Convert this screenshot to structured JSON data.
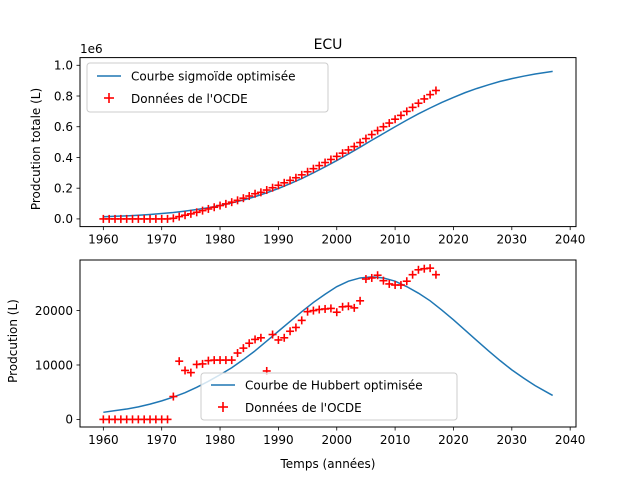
{
  "chart_data": [
    {
      "type": "line",
      "title": "ECU",
      "ylabel": "Prodcution totale (L)",
      "xlabel": "",
      "offset_text": "1e6",
      "xlim": [
        1956,
        2041
      ],
      "ylim": [
        -0.05,
        1.05
      ],
      "xticks": [
        1960,
        1970,
        1980,
        1990,
        2000,
        2010,
        2020,
        2030,
        2040
      ],
      "yticks": [
        0.0,
        0.2,
        0.4,
        0.6,
        0.8,
        1.0
      ],
      "ytick_labels": [
        "0.0",
        "0.2",
        "0.4",
        "0.6",
        "0.8",
        "1.0"
      ],
      "legend_position": "upper left",
      "series": [
        {
          "name": "Courbe sigmoïde optimisée",
          "kind": "line",
          "color": "#1f77b4",
          "x": [
            1960,
            1962,
            1964,
            1966,
            1968,
            1970,
            1972,
            1974,
            1976,
            1978,
            1980,
            1982,
            1984,
            1986,
            1988,
            1990,
            1992,
            1994,
            1996,
            1998,
            2000,
            2002,
            2004,
            2006,
            2008,
            2010,
            2012,
            2014,
            2016,
            2018,
            2020,
            2022,
            2024,
            2026,
            2028,
            2030,
            2032,
            2034,
            2036,
            2037
          ],
          "y": [
            0.014,
            0.017,
            0.02,
            0.024,
            0.029,
            0.035,
            0.042,
            0.051,
            0.061,
            0.073,
            0.087,
            0.104,
            0.123,
            0.145,
            0.17,
            0.198,
            0.229,
            0.263,
            0.3,
            0.339,
            0.38,
            0.423,
            0.467,
            0.512,
            0.556,
            0.6,
            0.643,
            0.684,
            0.722,
            0.758,
            0.791,
            0.822,
            0.849,
            0.873,
            0.895,
            0.913,
            0.929,
            0.943,
            0.955,
            0.96
          ]
        },
        {
          "name": "Données de l'OCDE",
          "kind": "scatter",
          "marker": "+",
          "color": "#ff0000",
          "x": [
            1960,
            1961,
            1962,
            1963,
            1964,
            1965,
            1966,
            1967,
            1968,
            1969,
            1970,
            1971,
            1972,
            1973,
            1974,
            1975,
            1976,
            1977,
            1978,
            1979,
            1980,
            1981,
            1982,
            1983,
            1984,
            1985,
            1986,
            1987,
            1988,
            1989,
            1990,
            1991,
            1992,
            1993,
            1994,
            1995,
            1996,
            1997,
            1998,
            1999,
            2000,
            2001,
            2002,
            2003,
            2004,
            2005,
            2006,
            2007,
            2008,
            2009,
            2010,
            2011,
            2012,
            2013,
            2014,
            2015,
            2016,
            2017
          ],
          "y": [
            0.0,
            0.0,
            0.0,
            0.0,
            0.0,
            0.0,
            0.0,
            0.0,
            0.0,
            0.0,
            0.0,
            0.0,
            0.004,
            0.015,
            0.024,
            0.033,
            0.043,
            0.054,
            0.065,
            0.076,
            0.087,
            0.098,
            0.109,
            0.121,
            0.135,
            0.149,
            0.164,
            0.173,
            0.188,
            0.203,
            0.219,
            0.235,
            0.251,
            0.268,
            0.287,
            0.307,
            0.327,
            0.347,
            0.367,
            0.387,
            0.407,
            0.428,
            0.449,
            0.471,
            0.497,
            0.523,
            0.549,
            0.575,
            0.6,
            0.624,
            0.649,
            0.674,
            0.7,
            0.726,
            0.753,
            0.781,
            0.809,
            0.836
          ]
        }
      ]
    },
    {
      "type": "line",
      "title": "",
      "ylabel": "Prodcution (L)",
      "xlabel": "Temps (années)",
      "xlim": [
        1956,
        2041
      ],
      "ylim": [
        -1400,
        29300
      ],
      "xticks": [
        1960,
        1970,
        1980,
        1990,
        2000,
        2010,
        2020,
        2030,
        2040
      ],
      "yticks": [
        0,
        10000,
        20000
      ],
      "ytick_labels": [
        "0",
        "10000",
        "20000"
      ],
      "legend_position": "lower center",
      "series": [
        {
          "name": "Courbe de Hubbert optimisée",
          "kind": "line",
          "color": "#1f77b4",
          "x": [
            1960,
            1962,
            1964,
            1966,
            1968,
            1970,
            1972,
            1974,
            1976,
            1978,
            1980,
            1982,
            1984,
            1986,
            1988,
            1990,
            1992,
            1994,
            1996,
            1998,
            2000,
            2002,
            2004,
            2006,
            2008,
            2010,
            2012,
            2014,
            2016,
            2018,
            2020,
            2022,
            2024,
            2026,
            2028,
            2030,
            2032,
            2034,
            2036,
            2037
          ],
          "y": [
            1300,
            1600,
            1900,
            2300,
            2800,
            3400,
            4100,
            4900,
            5900,
            7000,
            8200,
            9500,
            11000,
            12600,
            14400,
            16200,
            18000,
            19800,
            21500,
            23000,
            24400,
            25400,
            26000,
            26200,
            26000,
            25400,
            24400,
            23200,
            21800,
            20100,
            18300,
            16400,
            14500,
            12600,
            10800,
            9100,
            7600,
            6200,
            5000,
            4400
          ]
        },
        {
          "name": "Données de l'OCDE",
          "kind": "scatter",
          "marker": "+",
          "color": "#ff0000",
          "x": [
            1960,
            1961,
            1962,
            1963,
            1964,
            1965,
            1966,
            1967,
            1968,
            1969,
            1970,
            1971,
            1972,
            1973,
            1974,
            1975,
            1976,
            1977,
            1978,
            1979,
            1980,
            1981,
            1982,
            1983,
            1984,
            1985,
            1986,
            1987,
            1988,
            1989,
            1990,
            1991,
            1992,
            1993,
            1994,
            1995,
            1996,
            1997,
            1998,
            1999,
            2000,
            2001,
            2002,
            2003,
            2004,
            2005,
            2006,
            2007,
            2008,
            2009,
            2010,
            2011,
            2012,
            2013,
            2014,
            2015,
            2016,
            2017
          ],
          "y": [
            0,
            0,
            0,
            0,
            0,
            0,
            0,
            0,
            0,
            0,
            0,
            0,
            4200,
            10700,
            9000,
            8600,
            10100,
            10200,
            10800,
            10900,
            10900,
            10900,
            10900,
            12200,
            13100,
            14000,
            14700,
            15000,
            8900,
            15600,
            14600,
            15000,
            16200,
            16900,
            18200,
            19800,
            20000,
            20200,
            20300,
            20400,
            19700,
            20700,
            20800,
            20500,
            21800,
            25800,
            26000,
            26500,
            25500,
            24900,
            24700,
            24700,
            25400,
            26600,
            27500,
            27700,
            27800,
            26600
          ]
        }
      ]
    }
  ]
}
